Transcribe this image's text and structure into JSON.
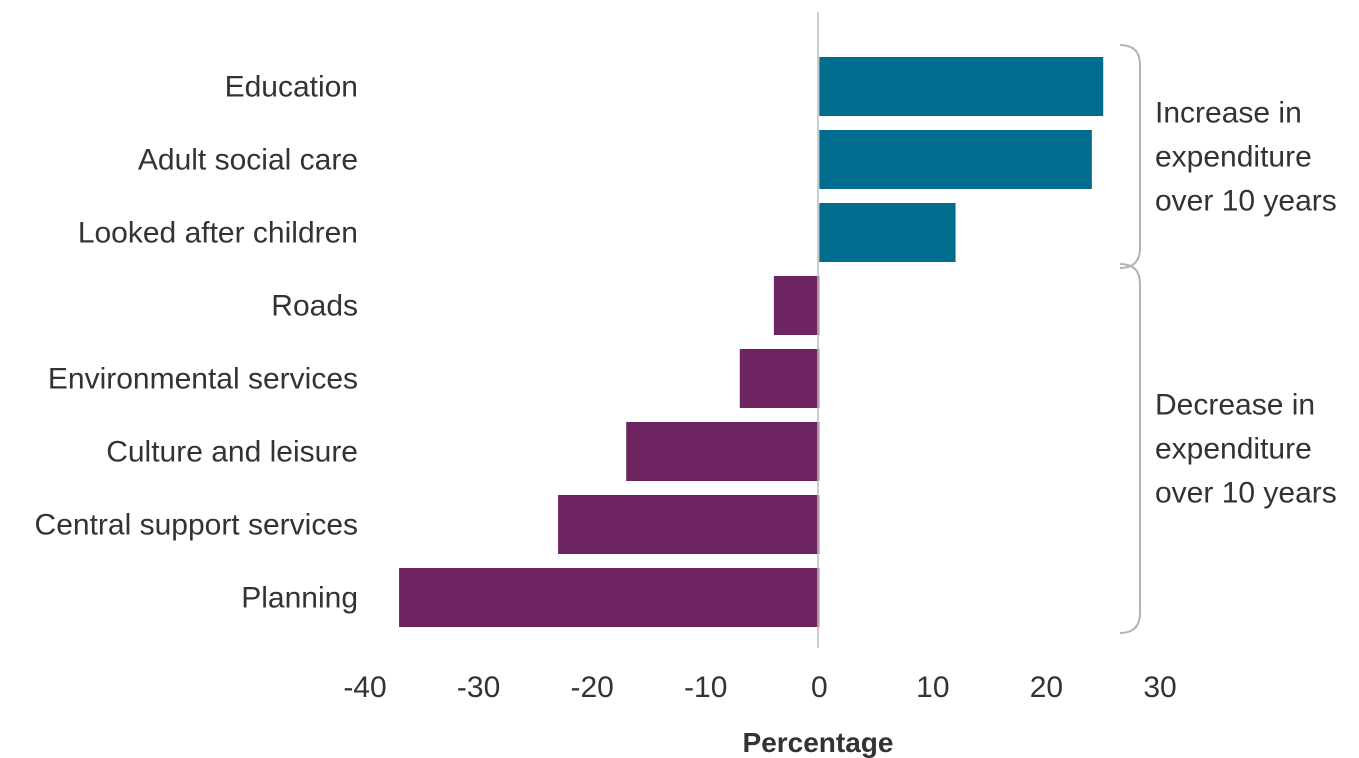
{
  "chart_data": {
    "type": "bar",
    "orientation": "horizontal",
    "categories": [
      "Education",
      "Adult social care",
      "Looked after children",
      "Roads",
      "Environmental services",
      "Culture and leisure",
      "Central support services",
      "Planning"
    ],
    "values": [
      25,
      24,
      12,
      -4,
      -7,
      -17,
      -23,
      -37
    ],
    "xlabel": "Percentage",
    "xlim": [
      -40,
      30
    ],
    "xticks": [
      "-40",
      "-30",
      "-20",
      "-10",
      "0",
      "10",
      "20",
      "30"
    ],
    "grid": false,
    "colors": {
      "increase": "#006d8f",
      "decrease": "#6d2460",
      "axis": "#bbbbbb",
      "bracket": "#b3b3b3",
      "text": "#333333"
    },
    "annotations": [
      {
        "text": [
          "Increase in",
          "expenditure",
          "over 10 years"
        ],
        "categories": [
          0,
          2
        ]
      },
      {
        "text": [
          "Decrease in",
          "expenditure",
          "over 10 years"
        ],
        "categories": [
          3,
          7
        ]
      }
    ]
  }
}
